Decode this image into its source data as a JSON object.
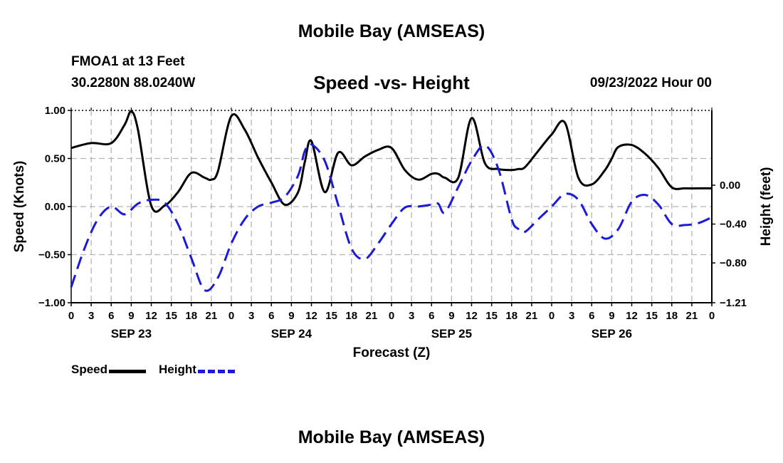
{
  "header": {
    "title": "Mobile Bay (AMSEAS)",
    "station": "FMOA1 at 13 Feet",
    "coords": "30.2280N  88.0240W",
    "subtitle": "Speed -vs- Height",
    "datetime": "09/23/2022 Hour 00"
  },
  "footer": {
    "title": "Mobile Bay (AMSEAS)"
  },
  "legend": {
    "speed_label": "Speed",
    "height_label": "Height"
  },
  "colors": {
    "speed": "#000000",
    "height": "#1a1ad8",
    "grid": "#b4b4b4"
  },
  "chart_data": {
    "type": "line",
    "xlabel": "Forecast (Z)",
    "ylabel_left": "Speed (Knots)",
    "ylabel_right": "Height (feet)",
    "xlim": [
      0,
      96
    ],
    "ylim_left": [
      -1.0,
      1.0
    ],
    "ylim_right": [
      -1.21,
      0.77
    ],
    "x_ticks": [
      0,
      3,
      6,
      9,
      12,
      15,
      18,
      21,
      24,
      27,
      30,
      33,
      36,
      39,
      42,
      45,
      48,
      51,
      54,
      57,
      60,
      63,
      66,
      69,
      72,
      75,
      78,
      81,
      84,
      87,
      90,
      93,
      96
    ],
    "x_tick_labels": [
      "0",
      "3",
      "6",
      "9",
      "12",
      "15",
      "18",
      "21",
      "0",
      "3",
      "6",
      "9",
      "12",
      "15",
      "18",
      "21",
      "0",
      "3",
      "6",
      "9",
      "12",
      "15",
      "18",
      "21",
      "0",
      "3",
      "6",
      "9",
      "12",
      "15",
      "18",
      "21",
      "0"
    ],
    "day_labels": [
      {
        "x": 9,
        "label": "SEP 23"
      },
      {
        "x": 33,
        "label": "SEP 24"
      },
      {
        "x": 57,
        "label": "SEP 25"
      },
      {
        "x": 81,
        "label": "SEP 26"
      }
    ],
    "y_ticks_left": [
      1.0,
      0.5,
      0.0,
      -0.5,
      -1.0
    ],
    "y_tick_labels_left": [
      "1.00",
      "0.50",
      "0.00",
      "−0.50",
      "−1.00"
    ],
    "y_ticks_right": [
      0.0,
      -0.4,
      -0.8,
      -1.21
    ],
    "y_tick_labels_right": [
      "0.00",
      "−0.40",
      "−0.80",
      "−1.21"
    ],
    "grid": true,
    "series": [
      {
        "name": "Speed",
        "axis": "left",
        "style": "solid",
        "x": [
          0,
          3,
          6,
          8,
          9,
          10,
          12,
          14,
          16,
          18,
          20,
          21,
          22,
          24,
          26,
          28,
          30,
          32,
          34,
          35,
          36,
          38,
          40,
          42,
          44,
          46,
          48,
          50,
          52,
          54,
          55,
          56,
          58,
          60,
          62,
          64,
          66,
          67,
          68,
          70,
          72,
          74,
          76,
          78,
          80,
          81,
          82,
          84,
          86,
          88,
          90,
          92,
          94,
          96
        ],
        "values": [
          0.61,
          0.66,
          0.66,
          0.85,
          0.99,
          0.8,
          0.01,
          0.01,
          0.15,
          0.35,
          0.3,
          0.28,
          0.37,
          0.94,
          0.8,
          0.51,
          0.25,
          0.02,
          0.15,
          0.46,
          0.68,
          0.15,
          0.56,
          0.43,
          0.52,
          0.59,
          0.61,
          0.38,
          0.28,
          0.34,
          0.34,
          0.3,
          0.3,
          0.92,
          0.45,
          0.39,
          0.38,
          0.39,
          0.41,
          0.58,
          0.75,
          0.87,
          0.3,
          0.23,
          0.38,
          0.5,
          0.62,
          0.64,
          0.55,
          0.4,
          0.2,
          0.19,
          0.19,
          0.19
        ]
      },
      {
        "name": "Height",
        "axis": "right",
        "style": "dashed",
        "x": [
          0,
          2,
          4,
          6,
          8,
          10,
          12,
          14,
          16,
          18,
          20,
          22,
          24,
          26,
          28,
          30,
          32,
          34,
          35,
          36,
          38,
          40,
          42,
          44,
          46,
          48,
          50,
          52,
          54,
          55,
          56,
          58,
          60,
          62,
          64,
          66,
          67,
          68,
          70,
          72,
          74,
          76,
          78,
          80,
          82,
          84,
          86,
          88,
          90,
          92,
          94,
          96
        ],
        "values": [
          -1.05,
          -0.65,
          -0.35,
          -0.22,
          -0.3,
          -0.19,
          -0.15,
          -0.18,
          -0.4,
          -0.75,
          -1.08,
          -0.95,
          -0.6,
          -0.35,
          -0.22,
          -0.18,
          -0.12,
          0.1,
          0.35,
          0.42,
          0.25,
          -0.2,
          -0.65,
          -0.76,
          -0.6,
          -0.4,
          -0.23,
          -0.22,
          -0.2,
          -0.19,
          -0.28,
          -0.02,
          0.25,
          0.41,
          0.17,
          -0.35,
          -0.45,
          -0.48,
          -0.35,
          -0.22,
          -0.09,
          -0.15,
          -0.4,
          -0.55,
          -0.45,
          -0.17,
          -0.1,
          -0.2,
          -0.4,
          -0.41,
          -0.39,
          -0.33
        ]
      }
    ]
  }
}
